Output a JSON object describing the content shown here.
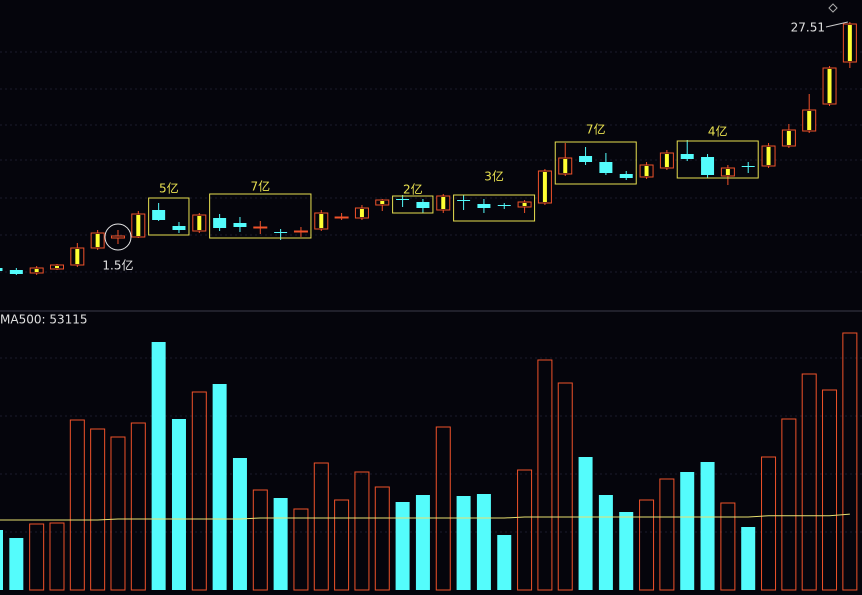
{
  "chart_data": {
    "type": "candlestick",
    "candles": {
      "open": [
        15.21,
        15.11,
        14.96,
        15.16,
        15.36,
        16.21,
        16.71,
        16.76,
        18.11,
        17.31,
        17.06,
        17.71,
        17.46,
        17.21,
        17.01,
        17.01,
        17.16,
        17.71,
        17.71,
        18.36,
        18.66,
        18.51,
        18.11,
        18.61,
        18.41,
        18.36,
        18.26,
        18.46,
        19.91,
        20.81,
        20.51,
        19.91,
        19.76,
        20.21,
        20.91,
        20.76,
        19.81,
        20.31,
        20.31,
        21.31,
        22.06,
        23.41,
        25.51
      ],
      "high": [
        15.31,
        15.21,
        15.31,
        15.41,
        16.46,
        17.11,
        17.11,
        18.06,
        18.46,
        17.51,
        17.96,
        17.91,
        17.76,
        17.56,
        17.16,
        17.26,
        18.11,
        17.96,
        18.36,
        18.66,
        18.86,
        18.66,
        18.91,
        18.86,
        18.66,
        18.46,
        18.61,
        20.16,
        21.46,
        21.26,
        20.96,
        20.06,
        20.51,
        21.11,
        21.61,
        20.91,
        20.36,
        20.51,
        21.46,
        22.41,
        23.91,
        25.31,
        27.51
      ],
      "low": [
        15.01,
        14.86,
        14.86,
        15.11,
        15.26,
        16.11,
        16.41,
        16.71,
        17.56,
        16.96,
        16.96,
        17.06,
        17.01,
        16.91,
        16.61,
        16.76,
        17.06,
        17.61,
        17.61,
        18.06,
        18.26,
        17.96,
        17.96,
        18.11,
        17.96,
        18.16,
        17.96,
        18.36,
        19.81,
        20.36,
        19.86,
        19.61,
        19.66,
        20.11,
        20.56,
        19.71,
        19.36,
        19.96,
        20.21,
        21.21,
        21.96,
        23.31,
        25.21
      ],
      "close": [
        15.06,
        14.91,
        15.21,
        15.36,
        16.21,
        16.96,
        16.81,
        17.91,
        17.61,
        17.11,
        17.86,
        17.21,
        17.26,
        17.26,
        16.96,
        17.06,
        17.96,
        17.76,
        18.21,
        18.61,
        18.61,
        18.21,
        18.81,
        18.56,
        18.21,
        18.31,
        18.51,
        20.06,
        20.71,
        20.51,
        19.96,
        19.71,
        20.36,
        20.96,
        20.66,
        19.86,
        20.21,
        20.26,
        21.31,
        22.11,
        23.11,
        25.21,
        27.41
      ],
      "up_color": "#f0522a",
      "down_color": "#54fcfc"
    },
    "volume": {
      "values": [
        42000,
        36400,
        46200,
        46900,
        119000,
        112700,
        107100,
        116900,
        173600,
        119700,
        138600,
        144200,
        92400,
        70000,
        64400,
        56700,
        88900,
        63000,
        82600,
        72100,
        61600,
        66500,
        114100,
        65800,
        67200,
        38500,
        84000,
        161000,
        144900,
        93100,
        66500,
        54600,
        63000,
        77700,
        82600,
        89600,
        60900,
        44100,
        93100,
        119700,
        151200,
        140000,
        179900
      ]
    },
    "volume_ma": {
      "label": "MA500: 53115",
      "color": "#e8e070",
      "values": [
        49000,
        49000,
        49000,
        49000,
        49000,
        49000,
        49700,
        49700,
        49700,
        49700,
        49700,
        49700,
        49700,
        50400,
        50400,
        50400,
        50400,
        50400,
        50400,
        50400,
        50400,
        50400,
        50400,
        50400,
        50400,
        50400,
        51100,
        51100,
        51100,
        51100,
        51100,
        51100,
        51100,
        51100,
        51100,
        51100,
        51100,
        51100,
        52000,
        52000,
        52000,
        52000,
        53115
      ]
    },
    "annotations": [
      "1.5亿",
      "5亿",
      "7亿",
      "2亿",
      "3亿",
      "7亿",
      "4亿"
    ]
  }
}
